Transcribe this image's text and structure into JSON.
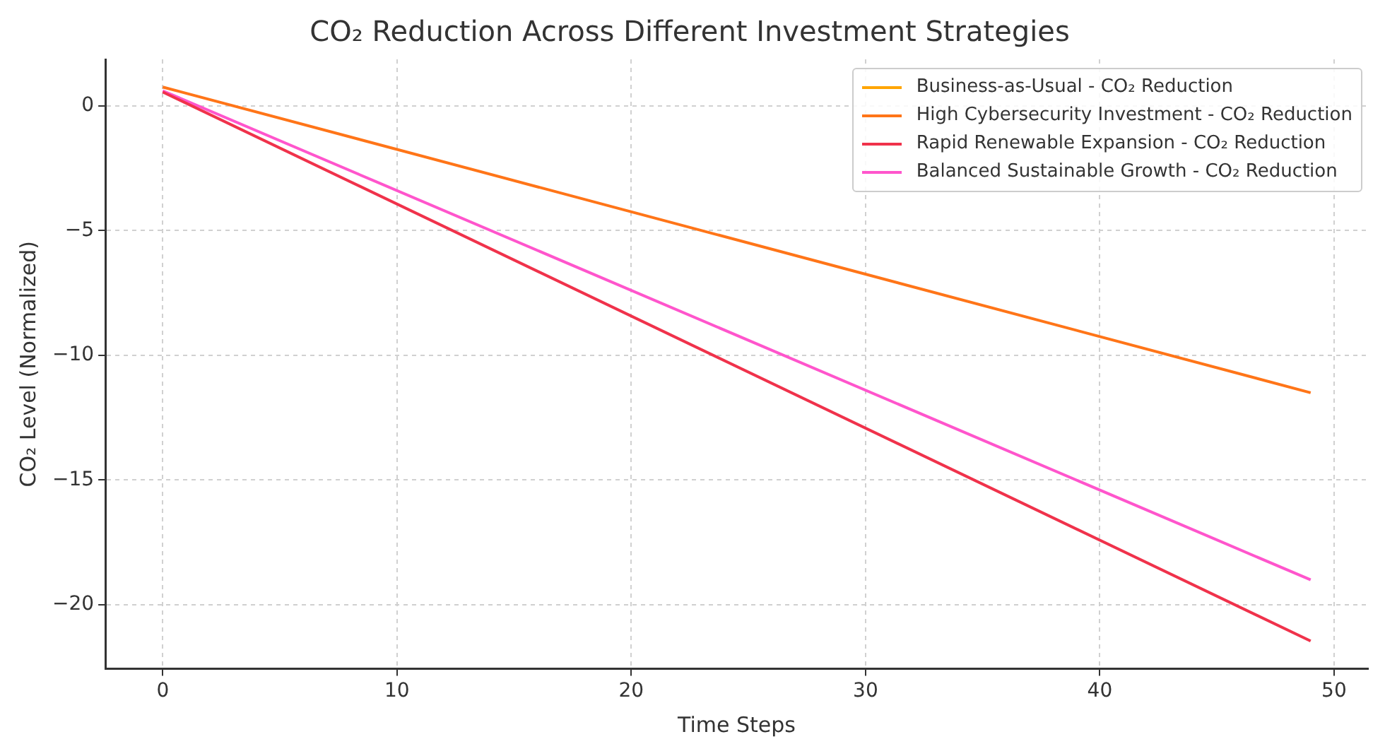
{
  "chart_data": {
    "type": "line",
    "title": "CO₂ Reduction Across Different Investment Strategies",
    "xlabel": "Time Steps",
    "ylabel": "CO₂ Level (Normalized)",
    "x": [
      0,
      49
    ],
    "series": [
      {
        "name": "Business-as-Usual - CO₂ Reduction",
        "color": "#ffa500",
        "values": [
          null,
          null
        ]
      },
      {
        "name": "High Cybersecurity Investment - CO₂ Reduction",
        "color": "#ff7518",
        "values": [
          0.75,
          -11.5
        ]
      },
      {
        "name": "Rapid Renewable Expansion - CO₂ Reduction",
        "color": "#f0324b",
        "values": [
          0.55,
          -21.45
        ]
      },
      {
        "name": "Balanced Sustainable Growth - CO₂ Reduction",
        "color": "#ff55cc",
        "values": [
          0.6,
          -19.0
        ]
      }
    ],
    "xlim": [
      -2.45,
      51.45
    ],
    "xticks": [
      0,
      10,
      20,
      30,
      40,
      50
    ],
    "ylim": [
      -22.56,
      1.86
    ],
    "yticks": [
      -20,
      -15,
      -10,
      -5,
      0
    ],
    "grid": true,
    "legend": "top right",
    "marker": "none",
    "line_style": "solid"
  }
}
